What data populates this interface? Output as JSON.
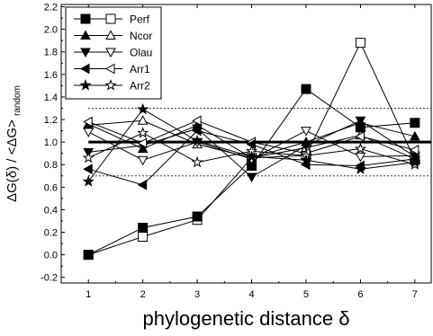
{
  "chart_data": {
    "type": "line",
    "title": "",
    "xlabel": "phylogenetic distance δ",
    "ylabel_main": "ΔG(δ) / <ΔG>",
    "ylabel_sub": "random",
    "xlim": [
      0.5,
      7.3
    ],
    "ylim": [
      -0.25,
      2.22
    ],
    "x_ticks": [
      1,
      2,
      3,
      4,
      5,
      6,
      7
    ],
    "y_ticks": [
      -0.2,
      0.0,
      0.2,
      0.4,
      0.6,
      0.8,
      1.0,
      1.2,
      1.4,
      1.6,
      1.8,
      2.0,
      2.2
    ],
    "y_tick_labels": [
      "-0.2",
      "0.0",
      "0.2",
      "0.4",
      "0.6",
      "0.8",
      "1.0",
      "1.2",
      "1.4",
      "1.6",
      "1.8",
      "2.0",
      "2.2"
    ],
    "legend_position": "top-left",
    "reference_lines": [
      {
        "y": 1.0,
        "style": "solid-thick"
      },
      {
        "y": 1.3,
        "style": "dotted"
      },
      {
        "y": 0.7,
        "style": "dotted"
      }
    ],
    "series": [
      {
        "name": "Perf",
        "marker": "square",
        "x": [
          1,
          2,
          3,
          4,
          5,
          6,
          7
        ],
        "filled": [
          0.0,
          0.24,
          0.34,
          0.79,
          1.47,
          1.13,
          1.17
        ],
        "open": [
          0.0,
          0.16,
          0.31,
          0.86,
          0.88,
          1.88,
          0.84
        ]
      },
      {
        "name": "Ncor",
        "marker": "triangle-up",
        "x": [
          1,
          2,
          3,
          4,
          5,
          6,
          7
        ],
        "filled": [
          1.16,
          0.94,
          1.15,
          0.86,
          1.0,
          1.17,
          1.05
        ],
        "open": [
          1.15,
          1.19,
          0.98,
          0.86,
          0.95,
          1.06,
          0.85
        ]
      },
      {
        "name": "Olau",
        "marker": "triangle-down",
        "x": [
          1,
          2,
          3,
          4,
          5,
          6,
          7
        ],
        "filled": [
          0.91,
          0.97,
          1.12,
          0.69,
          0.97,
          1.19,
          0.87
        ],
        "open": [
          1.09,
          0.84,
          1.0,
          0.85,
          1.1,
          0.87,
          0.88
        ]
      },
      {
        "name": "Arr1",
        "marker": "triangle-left",
        "x": [
          1,
          2,
          3,
          4,
          5,
          6,
          7
        ],
        "filled": [
          0.76,
          0.62,
          1.1,
          0.98,
          0.8,
          0.79,
          0.85
        ],
        "open": [
          1.18,
          0.99,
          1.19,
          1.0,
          0.9,
          1.05,
          0.93
        ]
      },
      {
        "name": "Arr2",
        "marker": "star",
        "x": [
          1,
          2,
          3,
          4,
          5,
          6,
          7
        ],
        "filled": [
          0.65,
          1.29,
          1.01,
          0.87,
          0.84,
          0.76,
          0.82
        ],
        "open": [
          0.86,
          1.08,
          0.82,
          0.92,
          0.88,
          0.94,
          0.8
        ]
      }
    ]
  }
}
